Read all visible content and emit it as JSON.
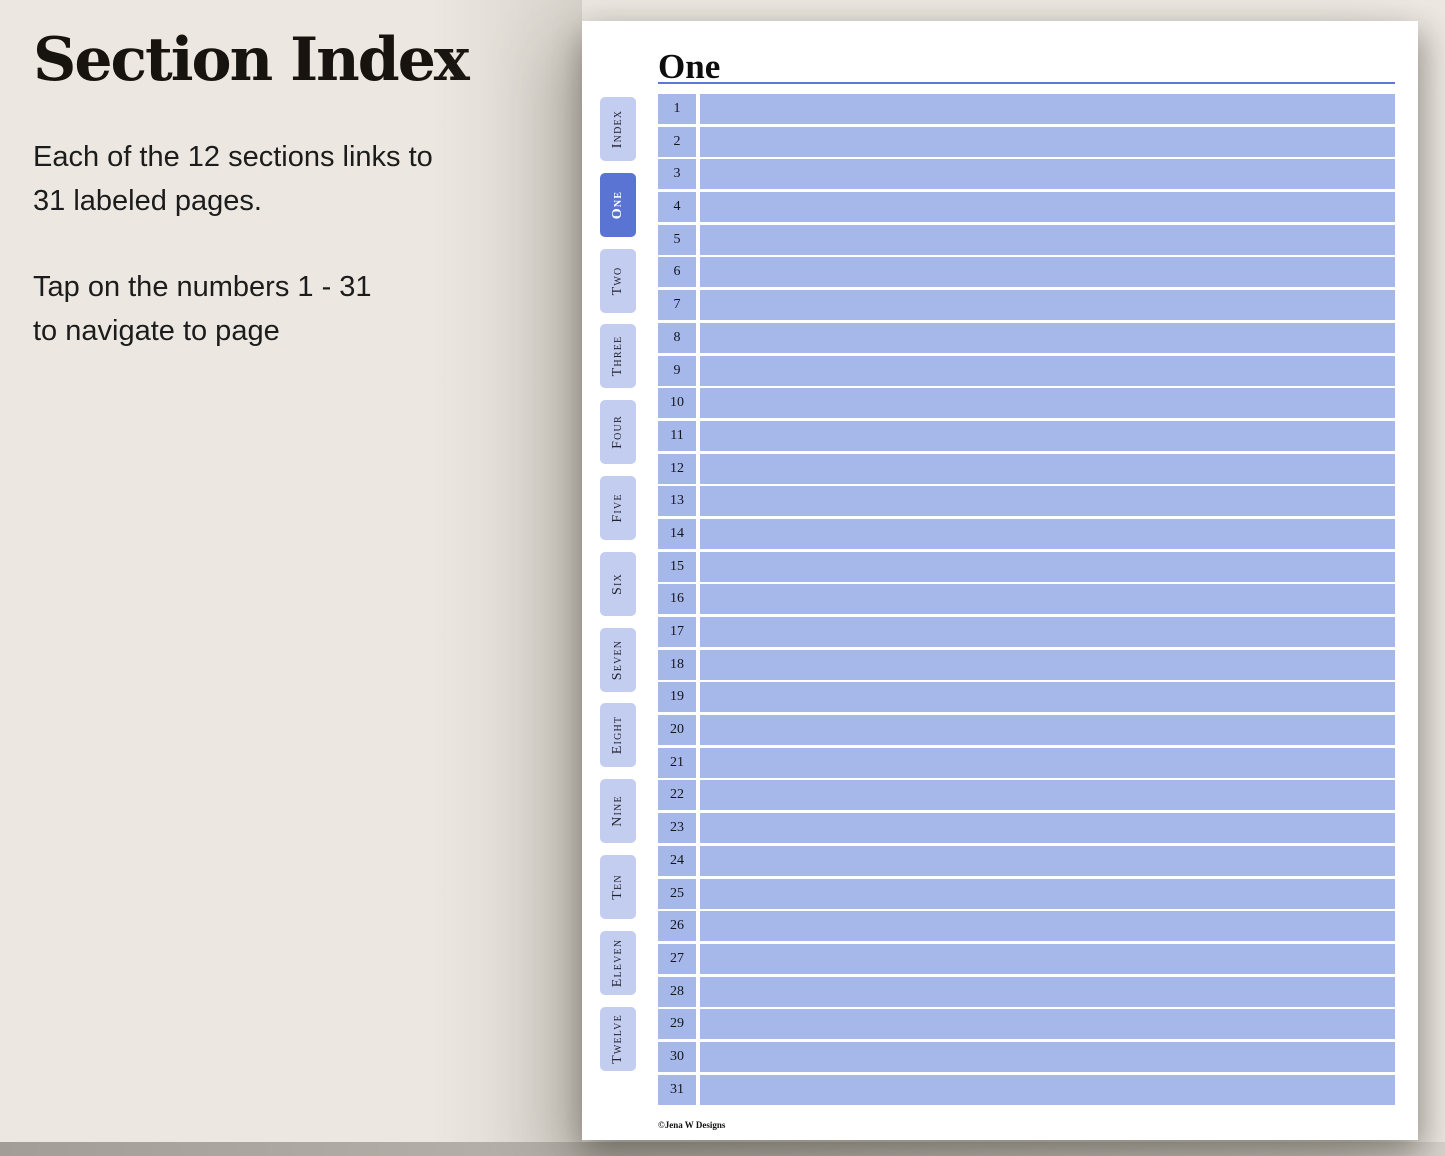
{
  "colors": {
    "background": "#ece8e1",
    "page": "#ffffff",
    "bar_blue": "#a6b8e9",
    "tab_inactive": "#c3cdf0",
    "tab_active": "#5a74d4",
    "tab_active_text": "#ffffff",
    "tab_text": "#23242e",
    "rule_blue": "#5c77d6",
    "floor_dark": "#a29e97",
    "floor_light": "#d8d4cd"
  },
  "left_panel": {
    "title": "Section Index",
    "paragraph1": "Each of the 12 sections links to\n31 labeled pages.",
    "paragraph2": "Tap on the numbers 1 - 31\nto navigate to page"
  },
  "page": {
    "title": "One",
    "tabs": [
      {
        "label": "Index",
        "active": false
      },
      {
        "label": "One",
        "active": true
      },
      {
        "label": "Two",
        "active": false
      },
      {
        "label": "Three",
        "active": false
      },
      {
        "label": "Four",
        "active": false
      },
      {
        "label": "Five",
        "active": false
      },
      {
        "label": "Six",
        "active": false
      },
      {
        "label": "Seven",
        "active": false
      },
      {
        "label": "Eight",
        "active": false
      },
      {
        "label": "Nine",
        "active": false
      },
      {
        "label": "Ten",
        "active": false
      },
      {
        "label": "Eleven",
        "active": false
      },
      {
        "label": "Twelve",
        "active": false
      }
    ],
    "row_numbers": [
      1,
      2,
      3,
      4,
      5,
      6,
      7,
      8,
      9,
      10,
      11,
      12,
      13,
      14,
      15,
      16,
      17,
      18,
      19,
      20,
      21,
      22,
      23,
      24,
      25,
      26,
      27,
      28,
      29,
      30,
      31
    ],
    "footer": "©Jena W Designs"
  }
}
